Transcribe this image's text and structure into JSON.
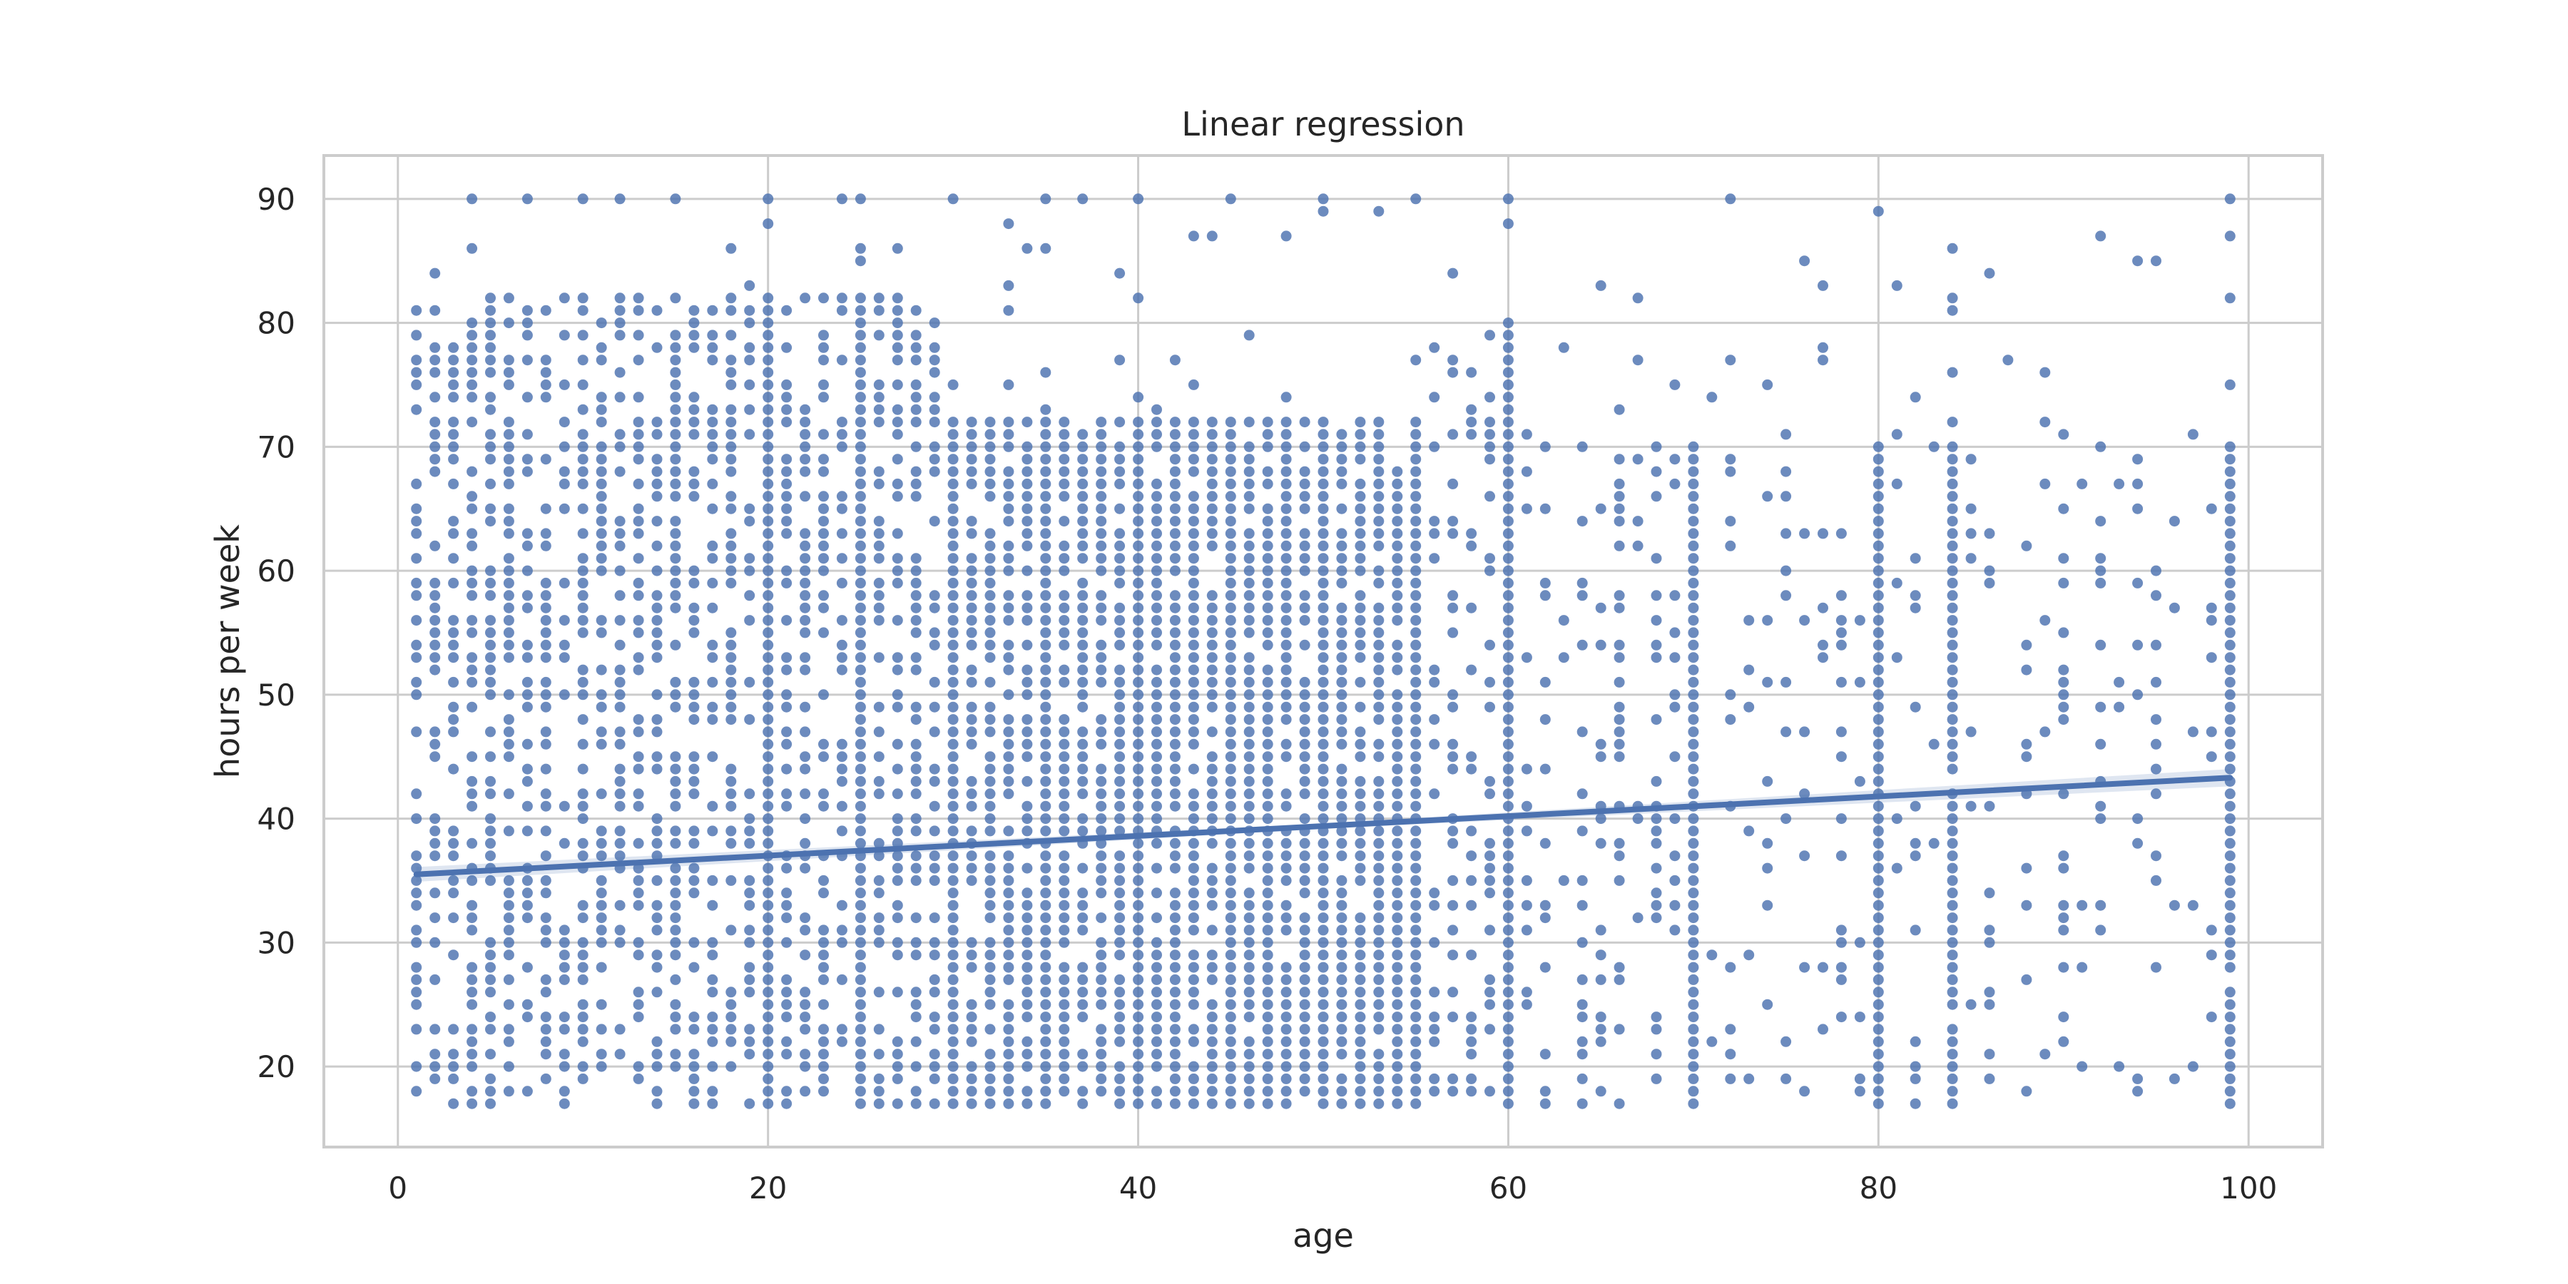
{
  "chart_data": {
    "type": "scatter",
    "title": "Linear regression",
    "xlabel": "age",
    "ylabel": "hours per week",
    "xlim": [
      -4,
      104
    ],
    "ylim": [
      13.5,
      93.5
    ],
    "xticks": [
      0,
      20,
      40,
      60,
      80,
      100
    ],
    "yticks": [
      20,
      30,
      40,
      50,
      60,
      70,
      80,
      90
    ],
    "xtick_labels": [
      "0",
      "20",
      "40",
      "60",
      "80",
      "100"
    ],
    "ytick_labels": [
      "20",
      "30",
      "40",
      "50",
      "60",
      "70",
      "80",
      "90"
    ],
    "grid": true,
    "point_color": "#4c72b0",
    "line_color": "#4c72b0",
    "background": "#ffffff",
    "grid_color": "#cccccc",
    "regression": {
      "x": [
        1,
        99
      ],
      "y": [
        35.5,
        43.3
      ],
      "ci_halfwidth_at_ends": [
        0.6,
        0.7
      ]
    },
    "scatter_description": {
      "x_range": [
        1,
        99
      ],
      "y_range": [
        17,
        90
      ],
      "dense_columns": [
        20,
        25,
        30,
        35,
        40,
        45,
        50,
        55,
        60,
        70,
        80,
        84,
        99
      ],
      "dense_region_x": [
        30,
        55
      ],
      "dense_region_y": [
        17,
        70
      ]
    }
  }
}
